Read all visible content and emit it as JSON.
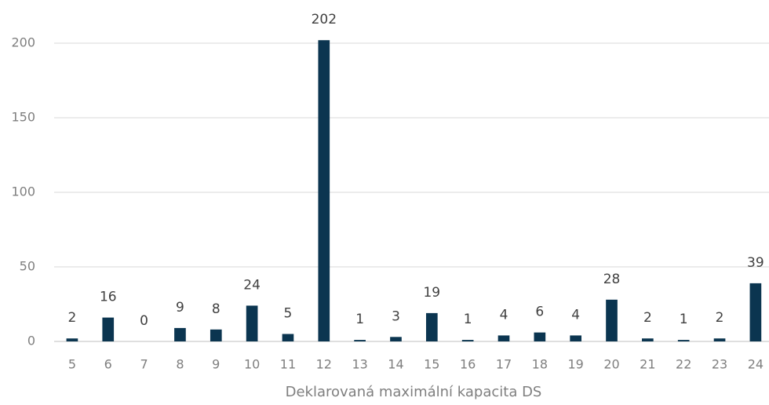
{
  "chart_data": {
    "type": "bar",
    "x_label": "Deklarovaná maximální kapacita DS",
    "categories": [
      "5",
      "6",
      "7",
      "8",
      "9",
      "10",
      "11",
      "12",
      "13",
      "14",
      "15",
      "16",
      "17",
      "18",
      "19",
      "20",
      "21",
      "22",
      "23",
      "24"
    ],
    "values": [
      2,
      16,
      0,
      9,
      8,
      24,
      5,
      202,
      1,
      3,
      19,
      1,
      4,
      6,
      4,
      28,
      2,
      1,
      2,
      39
    ],
    "color": "#0b3550",
    "ylim": [
      0,
      200
    ],
    "yticks": [
      0,
      50,
      100,
      150,
      200
    ],
    "grid": true
  }
}
